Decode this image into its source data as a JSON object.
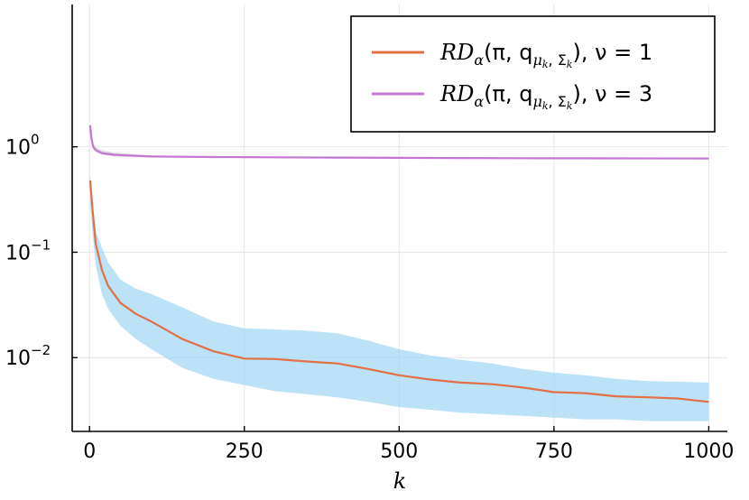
{
  "chart_data": {
    "type": "line",
    "title": "",
    "xlabel": "k",
    "ylabel": "",
    "yscale": "log10",
    "xlim": [
      -28,
      1030
    ],
    "ylim_log10": [
      -2.7,
      1.35
    ],
    "grid": true,
    "legend_position": "top-right",
    "x_ticks": [
      {
        "value": 0,
        "label": "0"
      },
      {
        "value": 250,
        "label": "250"
      },
      {
        "value": 500,
        "label": "500"
      },
      {
        "value": 750,
        "label": "750"
      },
      {
        "value": 1000,
        "label": "1000"
      }
    ],
    "y_ticks": [
      {
        "log10": 0,
        "base": "10",
        "exp": "0"
      },
      {
        "log10": -1,
        "base": "10",
        "exp": "−1"
      },
      {
        "log10": -2,
        "base": "10",
        "exp": "−2"
      }
    ],
    "series": [
      {
        "name": "nu1",
        "legend": {
          "main": "RD",
          "sub1": "α",
          "mid": "(π, q",
          "sub2": "μ",
          "sub2b": "k",
          "sub2c": ", Σ",
          "sub2d": "k",
          "tail": "),  ν = 1"
        },
        "color": "#e26f46",
        "band_color": "#9fd6f5",
        "x": [
          1,
          5,
          10,
          20,
          30,
          50,
          75,
          100,
          150,
          200,
          250,
          300,
          350,
          400,
          450,
          500,
          550,
          600,
          650,
          700,
          750,
          800,
          850,
          900,
          950,
          1000
        ],
        "y": [
          0.48,
          0.25,
          0.12,
          0.068,
          0.048,
          0.033,
          0.026,
          0.022,
          0.015,
          0.0115,
          0.0098,
          0.0097,
          0.0092,
          0.0088,
          0.0078,
          0.0068,
          0.0062,
          0.0058,
          0.0056,
          0.0052,
          0.0047,
          0.0046,
          0.0043,
          0.0042,
          0.0041,
          0.0038
        ],
        "y_lower": [
          0.3,
          0.15,
          0.075,
          0.04,
          0.029,
          0.02,
          0.015,
          0.012,
          0.008,
          0.0063,
          0.0055,
          0.0048,
          0.0045,
          0.0042,
          0.0038,
          0.0034,
          0.0032,
          0.003,
          0.0029,
          0.0028,
          0.0027,
          0.0026,
          0.0026,
          0.0025,
          0.0025,
          0.0025
        ],
        "y_upper": [
          0.55,
          0.3,
          0.16,
          0.11,
          0.08,
          0.055,
          0.045,
          0.04,
          0.03,
          0.022,
          0.019,
          0.0185,
          0.018,
          0.017,
          0.0145,
          0.012,
          0.0105,
          0.0095,
          0.0088,
          0.0078,
          0.0072,
          0.0068,
          0.0063,
          0.006,
          0.0059,
          0.0058
        ]
      },
      {
        "name": "nu3",
        "legend": {
          "main": "RD",
          "sub1": "α",
          "mid": "(π, q",
          "sub2": "μ",
          "sub2b": "k",
          "sub2c": ", Σ",
          "sub2d": "k",
          "tail": "),  ν = 3"
        },
        "color": "#c476d4",
        "band_color": "#d0d0d0",
        "x": [
          1,
          3,
          6,
          10,
          20,
          40,
          75,
          100,
          150,
          200,
          300,
          400,
          500,
          700,
          1000
        ],
        "y": [
          1.6,
          1.2,
          1.0,
          0.93,
          0.87,
          0.84,
          0.82,
          0.81,
          0.805,
          0.8,
          0.795,
          0.79,
          0.785,
          0.78,
          0.775
        ],
        "y_lower": [
          1.55,
          1.1,
          0.95,
          0.89,
          0.84,
          0.81,
          0.8,
          0.795,
          0.79,
          0.79,
          0.785,
          0.78,
          0.775,
          0.77,
          0.765
        ],
        "y_upper": [
          1.65,
          1.3,
          1.07,
          1.0,
          0.93,
          0.88,
          0.85,
          0.83,
          0.82,
          0.81,
          0.805,
          0.8,
          0.795,
          0.79,
          0.785
        ]
      }
    ]
  }
}
